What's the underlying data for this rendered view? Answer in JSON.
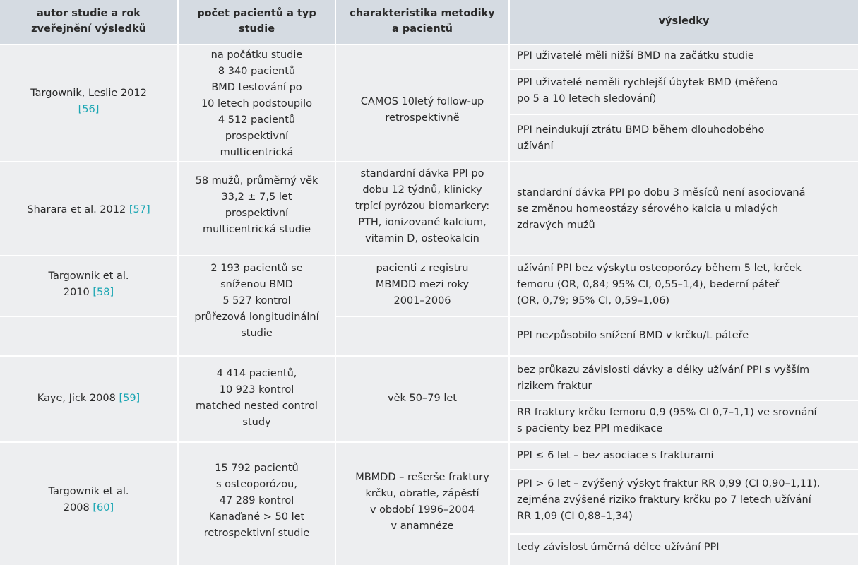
{
  "header": {
    "col1": [
      "autor studie a rok",
      "zveřejnění výsledků"
    ],
    "col2": [
      "počet pacientů a typ",
      "studie"
    ],
    "col3": [
      "charakteristika metodiky",
      "a pacientů"
    ],
    "col4": [
      "výsledky"
    ]
  },
  "rows": [
    {
      "author": [
        "Targownik, Leslie 2012"
      ],
      "ref": "[56]",
      "patients": [
        "na počátku studie",
        "8 340 pacientů",
        "BMD testování po",
        "10 letech podstoupilo",
        "4 512 pacientů",
        "prospektivní",
        "multicentrická"
      ],
      "method": [
        "CAMOS 10letý follow-up",
        "retrospektivně"
      ],
      "results": [
        [
          "PPI uživatelé měli nižší BMD na začátku studie"
        ],
        [
          "PPI uživatelé neměli rychlejší úbytek BMD (měřeno",
          "po 5 a 10 letech sledování)"
        ],
        [
          "PPI neindukují ztrátu BMD během dlouhodobého",
          "užívání"
        ]
      ]
    },
    {
      "author": [
        "Sharara et al. 2012"
      ],
      "ref": "[57]",
      "patients": [
        "58 mužů, průměrný věk",
        "33,2 ± 7,5 let",
        "prospektivní",
        "multicentrická studie"
      ],
      "method": [
        "standardní dávka PPI po",
        "dobu 12 týdnů, klinicky",
        "trpící pyrózou biomarkery:",
        "PTH, ionizované kalcium,",
        "vitamin D, osteokalcin"
      ],
      "results": [
        [
          "standardní dávka PPI po dobu 3 měsíců není asociovaná",
          "se změnou homeostázy sérového kalcia u mladých",
          "zdravých mužů"
        ]
      ]
    },
    {
      "author": [
        "Targownik et al.",
        "2010"
      ],
      "ref": "[58]",
      "patients": [
        "2 193 pacientů se",
        "sníženou BMD",
        "5 527 kontrol",
        "průřezová longitudinální",
        "studie"
      ],
      "method": [
        "pacienti z registru",
        "MBMDD mezi roky",
        "2001–2006"
      ],
      "results": [
        [
          "užívání PPI bez výskytu osteoporózy během 5 let, krček",
          "femoru (OR, 0,84; 95% CI, 0,55–1,4), bederní páteř",
          "(OR, 0,79; 95% CI, 0,59–1,06)"
        ],
        [
          "PPI nezpůsobilo snížení BMD v krčku/L páteře"
        ]
      ]
    },
    {
      "author": [
        "Kaye, Jick 2008"
      ],
      "ref": "[59]",
      "patients": [
        "4 414 pacientů,",
        "10 923 kontrol",
        "matched nested control",
        "study"
      ],
      "method": [
        "věk 50–79 let"
      ],
      "results": [
        [
          "bez průkazu závislosti dávky a délky užívání PPI s vyšším",
          "rizikem fraktur"
        ],
        [
          "RR fraktury krčku femoru 0,9 (95% CI 0,7–1,1) ve srovnání",
          "s pacienty bez PPI medikace"
        ]
      ]
    },
    {
      "author": [
        "Targownik et al.",
        "2008"
      ],
      "ref": "[60]",
      "patients": [
        "15 792 pacientů",
        "s osteoporózou,",
        "47 289 kontrol",
        "Kanaďané > 50 let",
        "retrospektivní studie"
      ],
      "method": [
        "MBMDD – rešerše fraktury",
        "krčku, obratle, zápěstí",
        "v období 1996–2004",
        "v anamnéze"
      ],
      "results": [
        [
          "PPI ≤ 6 let – bez asociace s frakturami"
        ],
        [
          "PPI > 6 let – zvýšený výskyt fraktur RR 0,99 (CI 0,90–1,11),",
          "zejména zvýšené riziko fraktury krčku po 7 letech užívání",
          "RR 1,09 (CI 0,88–1,34)"
        ],
        [
          "tedy závislost úměrná délce užívání PPI"
        ]
      ]
    }
  ]
}
